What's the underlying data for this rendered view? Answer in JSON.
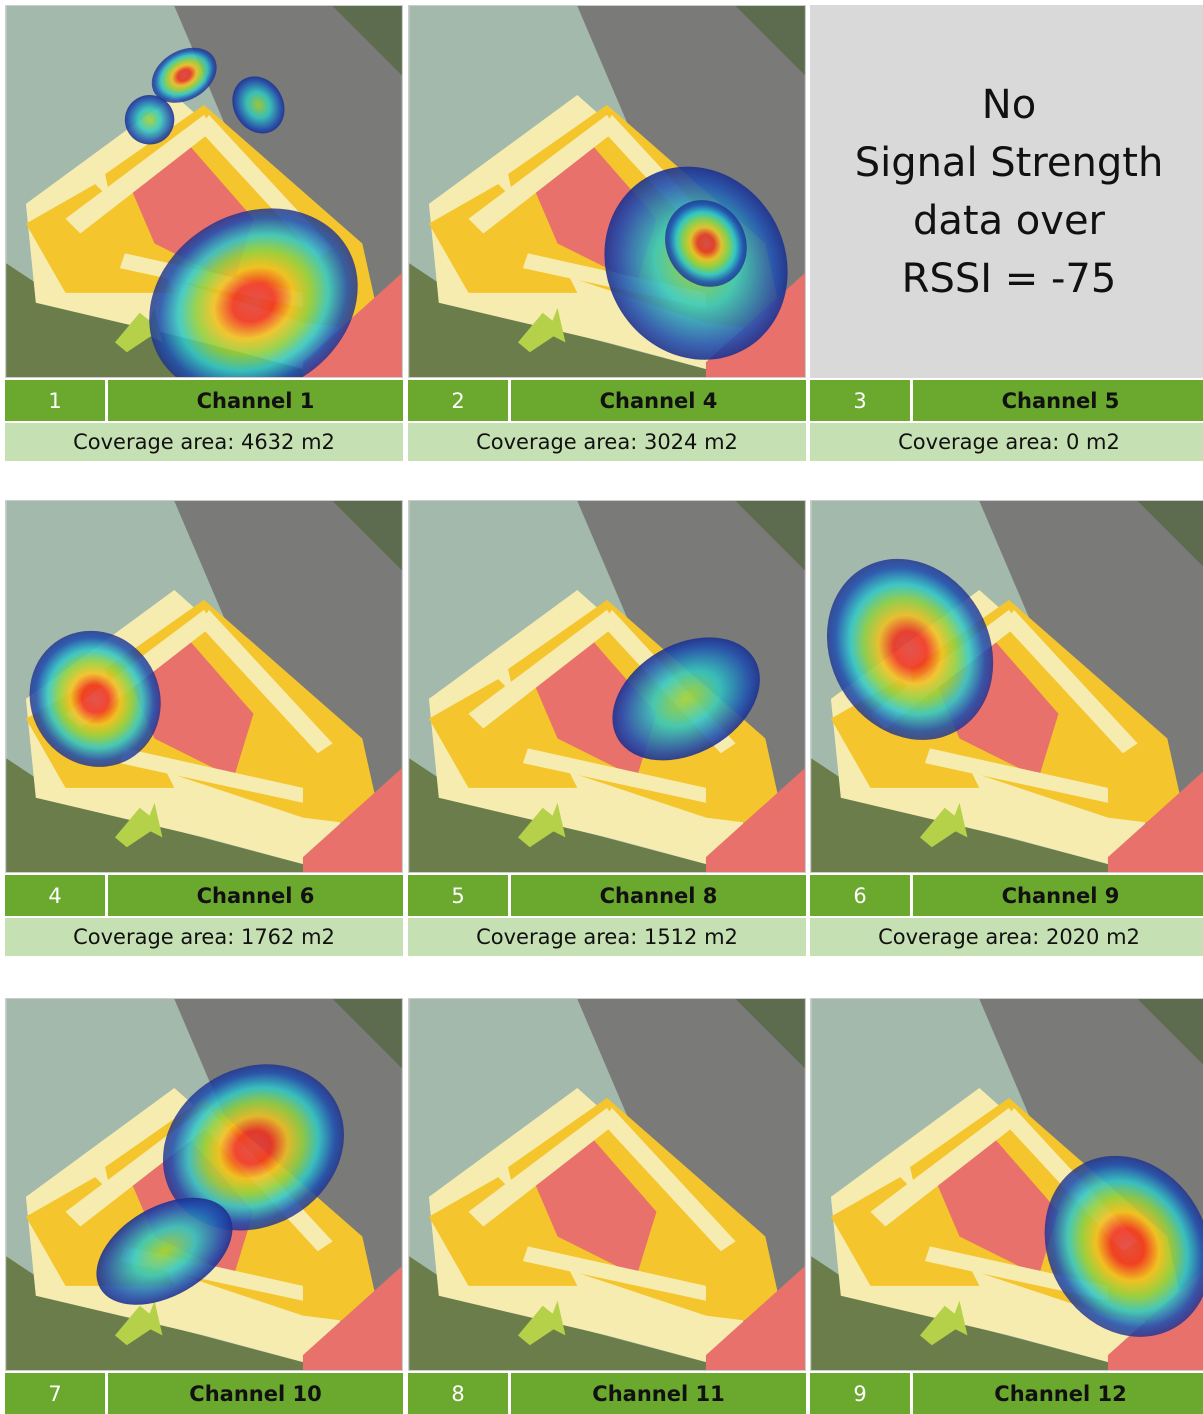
{
  "panels": [
    {
      "number": "1",
      "channel": "Channel 1",
      "coverage": "Coverage area: 4632 m2"
    },
    {
      "number": "2",
      "channel": "Channel 4",
      "coverage": "Coverage area: 3024 m2"
    },
    {
      "number": "3",
      "channel": "Channel 5",
      "coverage": "Coverage area: 0 m2",
      "message": [
        "No",
        "Signal Strength",
        "data over",
        "RSSI = -75"
      ]
    },
    {
      "number": "4",
      "channel": "Channel 6",
      "coverage": "Coverage area: 1762 m2"
    },
    {
      "number": "5",
      "channel": "Channel 8",
      "coverage": "Coverage area: 1512 m2"
    },
    {
      "number": "6",
      "channel": "Channel 9",
      "coverage": "Coverage area: 2020 m2"
    },
    {
      "number": "7",
      "channel": "Channel 10"
    },
    {
      "number": "8",
      "channel": "Channel 11"
    },
    {
      "number": "9",
      "channel": "Channel 12"
    }
  ]
}
